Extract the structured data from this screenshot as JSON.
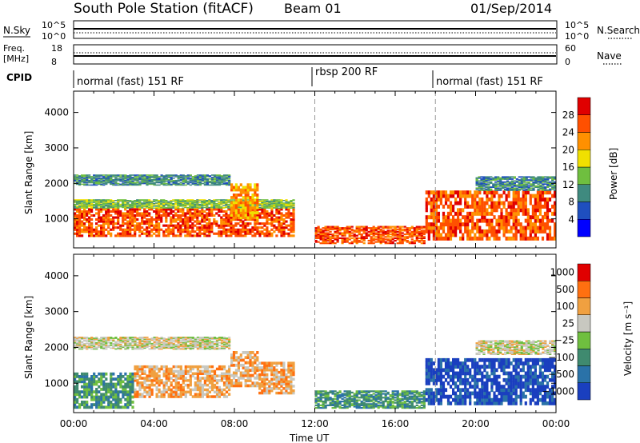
{
  "header": {
    "title": "South Pole Station (fitACF)",
    "beam": "Beam 01",
    "date": "01/Sep/2014"
  },
  "nsky_panel": {
    "left_label": "N.Sky",
    "right_label": "N.Search",
    "left_ticks": [
      "10^5",
      "10^0"
    ],
    "right_ticks": [
      "10^5",
      "10^0"
    ]
  },
  "freq_panel": {
    "left_label_1": "Freq.",
    "left_label_2": "[MHz]",
    "right_label": "Nave",
    "left_ticks": [
      "18",
      "8"
    ],
    "right_ticks": [
      "60",
      "0"
    ]
  },
  "cpid": {
    "label": "CPID",
    "segments": [
      {
        "text": "normal (fast) 151 RF",
        "start_hour": 0
      },
      {
        "text": "rbsp 200 RF",
        "start_hour": 12
      },
      {
        "text": "normal (fast) 151 RF",
        "start_hour": 18
      }
    ]
  },
  "chart_data": [
    {
      "type": "heatmap",
      "name": "power",
      "ylabel": "Slant Range [km]",
      "ylim": [
        180,
        4600
      ],
      "yticks": [
        1000,
        2000,
        3000,
        4000
      ],
      "xlim": [
        0,
        24
      ],
      "colorbar_label": "Power [dB]",
      "colorbar_ticks": [
        "4",
        "8",
        "12",
        "16",
        "20",
        "24",
        "28"
      ],
      "colors": [
        "#0000ff",
        "#1f4fbf",
        "#3f8a7f",
        "#6fbf3f",
        "#f0e000",
        "#ff9000",
        "#ff5000",
        "#e00000"
      ],
      "bands": [
        {
          "t0": 0.0,
          "t1": 11.0,
          "r0": 500,
          "r1": 1300,
          "level": 6
        },
        {
          "t0": 0.0,
          "t1": 11.0,
          "r0": 1300,
          "r1": 1550,
          "level": 3
        },
        {
          "t0": 0.0,
          "t1": 7.8,
          "r0": 1950,
          "r1": 2250,
          "level": 2
        },
        {
          "t0": 7.8,
          "t1": 9.2,
          "r0": 1000,
          "r1": 2000,
          "level": 5
        },
        {
          "t0": 12.0,
          "t1": 17.5,
          "r0": 300,
          "r1": 800,
          "level": 6
        },
        {
          "t0": 17.5,
          "t1": 24.0,
          "r0": 400,
          "r1": 1800,
          "level": 6
        },
        {
          "t0": 20.0,
          "t1": 24.0,
          "r0": 1800,
          "r1": 2200,
          "level": 2
        }
      ]
    },
    {
      "type": "heatmap",
      "name": "velocity",
      "ylabel": "Slant Range [km]",
      "ylim": [
        180,
        4600
      ],
      "yticks": [
        1000,
        2000,
        3000,
        4000
      ],
      "xlim": [
        0,
        24
      ],
      "xlabel": "Time UT",
      "xticks": [
        "00:00",
        "04:00",
        "08:00",
        "12:00",
        "16:00",
        "20:00",
        "00:00"
      ],
      "colorbar_label": "Velocity [m s⁻¹]",
      "colorbar_ticks": [
        "1000",
        "500",
        "100",
        "25",
        "−25",
        "−100",
        "−500",
        "−1000"
      ],
      "colors": [
        "#1a3fbf",
        "#2a72a8",
        "#3f8a6f",
        "#6fbf3f",
        "#c8c8c0",
        "#f0a040",
        "#ff7010",
        "#e00000"
      ],
      "bands": [
        {
          "t0": 0.0,
          "t1": 3.0,
          "r0": 300,
          "r1": 1300,
          "level": 2
        },
        {
          "t0": 3.0,
          "t1": 7.8,
          "r0": 600,
          "r1": 1500,
          "level": 5
        },
        {
          "t0": 7.8,
          "t1": 9.2,
          "r0": 900,
          "r1": 1900,
          "level": 5
        },
        {
          "t0": 9.2,
          "t1": 11.0,
          "r0": 700,
          "r1": 1600,
          "level": 5
        },
        {
          "t0": 0.0,
          "t1": 7.8,
          "r0": 1950,
          "r1": 2300,
          "level": 4
        },
        {
          "t0": 12.0,
          "t1": 17.5,
          "r0": 300,
          "r1": 800,
          "level": 2
        },
        {
          "t0": 17.5,
          "t1": 24.0,
          "r0": 400,
          "r1": 1700,
          "level": 0
        },
        {
          "t0": 20.0,
          "t1": 24.0,
          "r0": 1800,
          "r1": 2200,
          "level": 4
        }
      ]
    }
  ]
}
